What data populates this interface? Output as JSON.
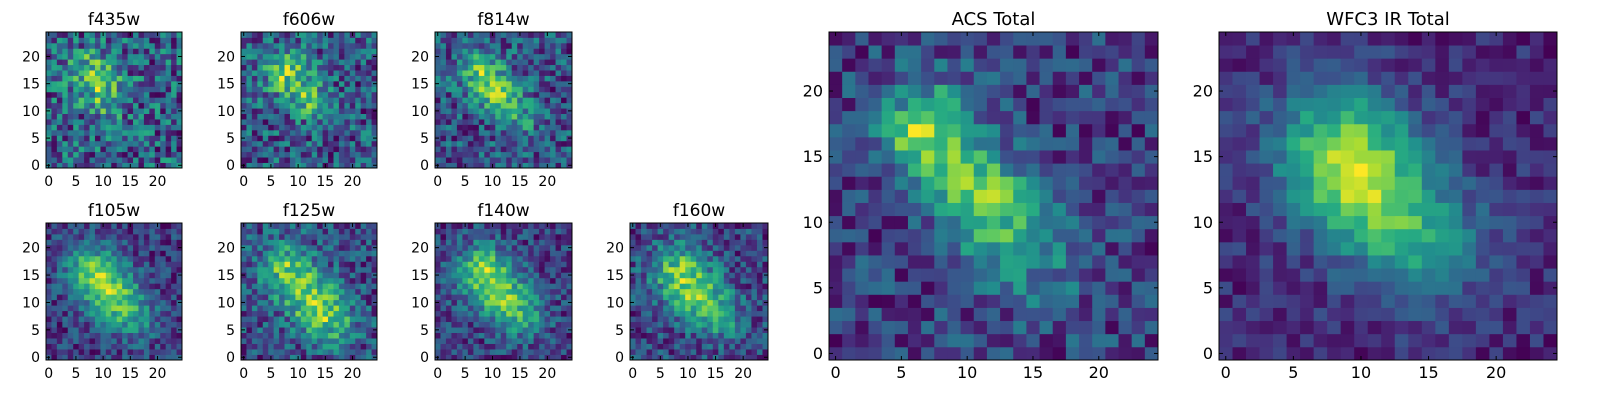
{
  "chart_data": [
    {
      "type": "heatmap",
      "title": "f435w",
      "xlabel": "",
      "ylabel": "",
      "xlim": [
        0,
        24
      ],
      "ylim": [
        0,
        24
      ],
      "xticks": [
        "0",
        "5",
        "10",
        "15",
        "20"
      ],
      "yticks": [
        "0",
        "5",
        "10",
        "15",
        "20"
      ],
      "grid": false,
      "colormap": "viridis",
      "structure": {
        "noise": 0.55,
        "lobes": [
          [
            8,
            17,
            3.0,
            0.7
          ],
          [
            11,
            12,
            2.5,
            0.55
          ]
        ]
      }
    },
    {
      "type": "heatmap",
      "title": "f606w",
      "xlabel": "",
      "ylabel": "",
      "xlim": [
        0,
        24
      ],
      "ylim": [
        0,
        24
      ],
      "xticks": [
        "0",
        "5",
        "10",
        "15",
        "20"
      ],
      "yticks": [
        "0",
        "5",
        "10",
        "15",
        "20"
      ],
      "grid": false,
      "colormap": "viridis",
      "structure": {
        "noise": 0.5,
        "lobes": [
          [
            8,
            17,
            3.0,
            0.85
          ],
          [
            12,
            12,
            2.5,
            0.6
          ]
        ]
      }
    },
    {
      "type": "heatmap",
      "title": "f814w",
      "xlabel": "",
      "ylabel": "",
      "xlim": [
        0,
        24
      ],
      "ylim": [
        0,
        24
      ],
      "xticks": [
        "0",
        "5",
        "10",
        "15",
        "20"
      ],
      "yticks": [
        "0",
        "5",
        "10",
        "15",
        "20"
      ],
      "grid": false,
      "colormap": "viridis",
      "structure": {
        "noise": 0.45,
        "lobes": [
          [
            8,
            17,
            3.0,
            0.9
          ],
          [
            12,
            12,
            2.5,
            0.75
          ],
          [
            15,
            8,
            2.5,
            0.4
          ]
        ]
      }
    },
    {
      "type": "heatmap",
      "title": "f105w",
      "xlabel": "",
      "ylabel": "",
      "xlim": [
        0,
        24
      ],
      "ylim": [
        0,
        24
      ],
      "xticks": [
        "0",
        "5",
        "10",
        "15",
        "20"
      ],
      "yticks": [
        "0",
        "5",
        "10",
        "15",
        "20"
      ],
      "grid": false,
      "colormap": "viridis",
      "structure": {
        "noise": 0.32,
        "lobes": [
          [
            8,
            16,
            3.5,
            0.85
          ],
          [
            12,
            11,
            3.5,
            0.85
          ],
          [
            16,
            7,
            3.0,
            0.45
          ]
        ]
      }
    },
    {
      "type": "heatmap",
      "title": "f125w",
      "xlabel": "",
      "ylabel": "",
      "xlim": [
        0,
        24
      ],
      "ylim": [
        0,
        24
      ],
      "xticks": [
        "0",
        "5",
        "10",
        "15",
        "20"
      ],
      "yticks": [
        "0",
        "5",
        "10",
        "15",
        "20"
      ],
      "grid": false,
      "colormap": "viridis",
      "structure": {
        "noise": 0.38,
        "lobes": [
          [
            8,
            16,
            3.5,
            0.8
          ],
          [
            13,
            10,
            3.5,
            0.85
          ],
          [
            17,
            6,
            3.0,
            0.45
          ]
        ]
      }
    },
    {
      "type": "heatmap",
      "title": "f140w",
      "xlabel": "",
      "ylabel": "",
      "xlim": [
        0,
        24
      ],
      "ylim": [
        0,
        24
      ],
      "xticks": [
        "0",
        "5",
        "10",
        "15",
        "20"
      ],
      "yticks": [
        "0",
        "5",
        "10",
        "15",
        "20"
      ],
      "grid": false,
      "colormap": "viridis",
      "structure": {
        "noise": 0.35,
        "lobes": [
          [
            8,
            16,
            3.5,
            0.9
          ],
          [
            12,
            11,
            3.5,
            0.8
          ],
          [
            16,
            7,
            3.0,
            0.5
          ]
        ]
      }
    },
    {
      "type": "heatmap",
      "title": "f160w",
      "xlabel": "",
      "ylabel": "",
      "xlim": [
        0,
        24
      ],
      "ylim": [
        0,
        24
      ],
      "xticks": [
        "0",
        "5",
        "10",
        "15",
        "20"
      ],
      "yticks": [
        "0",
        "5",
        "10",
        "15",
        "20"
      ],
      "grid": false,
      "colormap": "viridis",
      "structure": {
        "noise": 0.38,
        "lobes": [
          [
            8,
            16,
            3.5,
            0.85
          ],
          [
            12,
            11,
            3.5,
            0.8
          ],
          [
            16,
            7,
            3.0,
            0.5
          ]
        ]
      }
    },
    {
      "type": "heatmap",
      "title": "ACS Total",
      "xlabel": "",
      "ylabel": "",
      "xlim": [
        0,
        24
      ],
      "ylim": [
        0,
        24
      ],
      "xticks": [
        "0",
        "5",
        "10",
        "15",
        "20"
      ],
      "yticks": [
        "0",
        "5",
        "10",
        "15",
        "20"
      ],
      "grid": false,
      "colormap": "viridis",
      "structure": {
        "noise": 0.3,
        "lobes": [
          [
            7,
            17,
            2.5,
            1.0
          ],
          [
            11,
            12,
            2.5,
            0.85
          ],
          [
            15,
            8,
            3.0,
            0.45
          ]
        ]
      }
    },
    {
      "type": "heatmap",
      "title": "WFC3 IR Total",
      "xlabel": "",
      "ylabel": "",
      "xlim": [
        0,
        24
      ],
      "ylim": [
        0,
        24
      ],
      "xticks": [
        "0",
        "5",
        "10",
        "15",
        "20"
      ],
      "yticks": [
        "0",
        "5",
        "10",
        "15",
        "20"
      ],
      "grid": false,
      "colormap": "viridis",
      "structure": {
        "noise": 0.22,
        "lobes": [
          [
            8,
            16,
            3.5,
            0.95
          ],
          [
            11,
            12,
            3.5,
            0.9
          ],
          [
            15,
            8,
            3.5,
            0.55
          ]
        ]
      }
    }
  ]
}
